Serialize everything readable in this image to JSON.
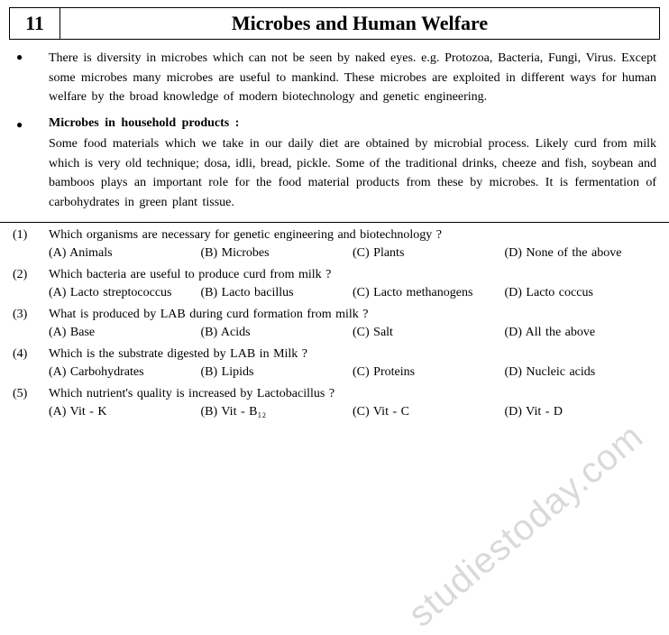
{
  "header": {
    "chapter_number": "11",
    "chapter_title": "Microbes and Human Welfare"
  },
  "intro": {
    "bullets": [
      {
        "paragraph": "There is diversity in microbes which can not be seen by naked eyes. e.g. Protozoa, Bacteria, Fungi, Virus. Except some microbes many microbes are useful to mankind. These microbes are exploited in different ways for human welfare by the broad knowledge of modern biotechnology and genetic engineering."
      },
      {
        "subhead": "Microbes in household products :",
        "paragraph": "Some food materials which we take in our daily diet are obtained by microbial process. Likely curd from milk which is very old technique; dosa, idli, bread, pickle. Some of the traditional drinks, cheeze and fish, soybean and bamboos plays an important role for the food material products from these by microbes. It is fermentation of carbohydrates in green plant tissue."
      }
    ]
  },
  "questions": [
    {
      "num": "(1)",
      "text": "Which organisms are necessary for genetic engineering and biotechnology ?",
      "opts": [
        "(A) Animals",
        "(B) Microbes",
        "(C) Plants",
        "(D) None of the above"
      ]
    },
    {
      "num": "(2)",
      "text": "Which bacteria are useful to produce curd from milk ?",
      "opts": [
        "(A) Lacto streptococcus",
        "(B) Lacto bacillus",
        "(C) Lacto methanogens",
        "(D) Lacto coccus"
      ]
    },
    {
      "num": "(3)",
      "text": "What is produced by LAB during curd formation from milk ?",
      "opts": [
        "(A) Base",
        "(B) Acids",
        "(C) Salt",
        "(D) All the above"
      ]
    },
    {
      "num": "(4)",
      "text": "Which is the substrate digested by LAB in Milk ?",
      "opts": [
        "(A) Carbohydrates",
        "(B) Lipids",
        "(C) Proteins",
        "(D) Nucleic acids"
      ]
    },
    {
      "num": "(5)",
      "text": "Which nutrient's quality is increased by Lactobacillus ?",
      "opts": [
        "(A) Vit - K",
        "(B) Vit - B₁₂",
        "(C) Vit - C",
        "(D) Vit - D"
      ]
    }
  ],
  "watermark": "studiestoday.com"
}
